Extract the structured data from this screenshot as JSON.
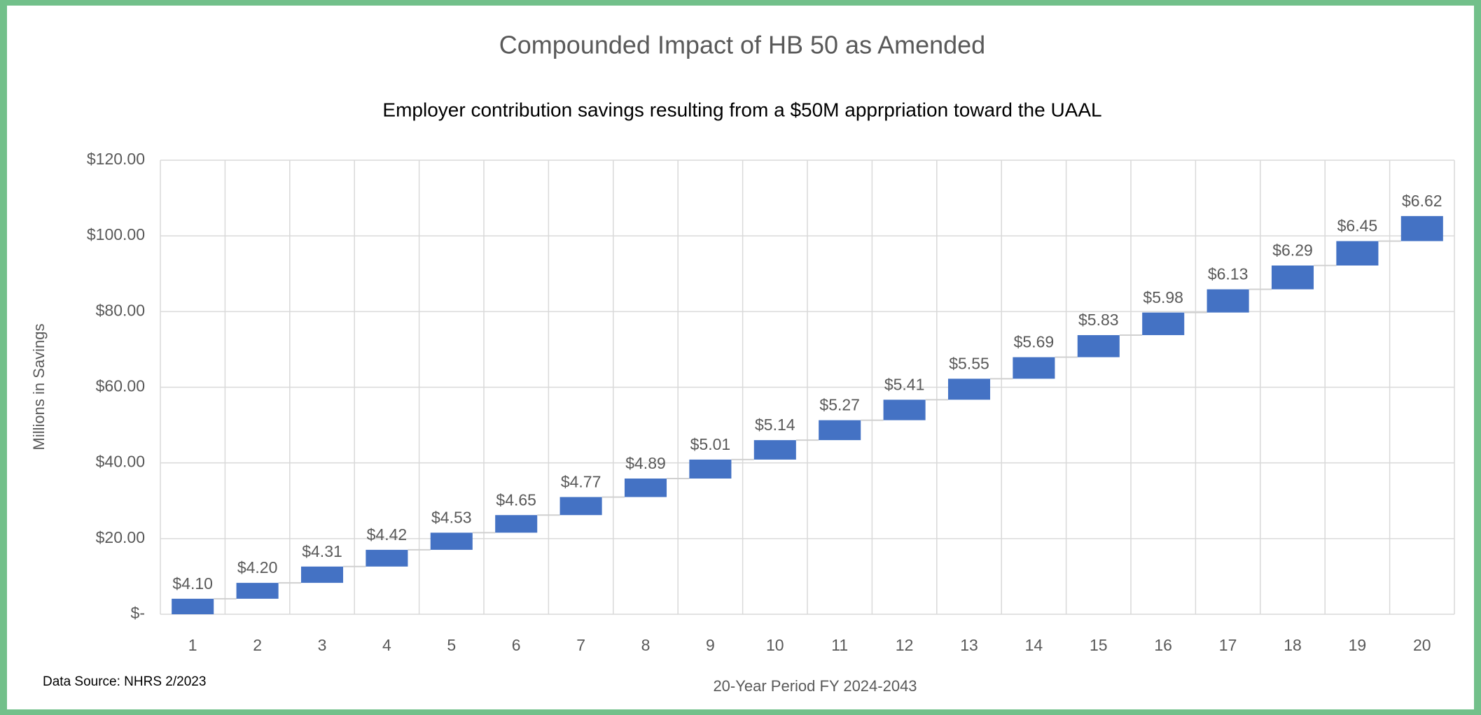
{
  "chart_data": {
    "type": "waterfall",
    "title": "Compounded Impact of HB 50 as Amended",
    "subtitle": "Employer contribution savings resulting from a $50M apprpriation toward the UAAL",
    "x_label": "20-Year Period FY 2024-2043",
    "y_label": "Millions in Savings",
    "note": "Data Source: NHRS 2/2023",
    "categories": [
      "1",
      "2",
      "3",
      "4",
      "5",
      "6",
      "7",
      "8",
      "9",
      "10",
      "11",
      "12",
      "13",
      "14",
      "15",
      "16",
      "17",
      "18",
      "19",
      "20"
    ],
    "values": [
      4.1,
      4.2,
      4.31,
      4.42,
      4.53,
      4.65,
      4.77,
      4.89,
      5.01,
      5.14,
      5.27,
      5.41,
      5.55,
      5.69,
      5.83,
      5.98,
      6.13,
      6.29,
      6.45,
      6.62
    ],
    "value_labels": [
      "$4.10",
      "$4.20",
      "$4.31",
      "$4.42",
      "$4.53",
      "$4.65",
      "$4.77",
      "$4.89",
      "$5.01",
      "$5.14",
      "$5.27",
      "$5.41",
      "$5.55",
      "$5.69",
      "$5.83",
      "$5.98",
      "$6.13",
      "$6.29",
      "$6.45",
      "$6.62"
    ],
    "color": "#4472c4",
    "ylim": [
      0,
      120
    ],
    "yticks": [
      {
        "value": 0,
        "label": "$-"
      },
      {
        "value": 20,
        "label": "$20.00"
      },
      {
        "value": 40,
        "label": "$40.00"
      },
      {
        "value": 60,
        "label": "$60.00"
      },
      {
        "value": 80,
        "label": "$80.00"
      },
      {
        "value": 100,
        "label": "$100.00"
      },
      {
        "value": 120,
        "label": "$120.00"
      }
    ],
    "grid": true
  }
}
